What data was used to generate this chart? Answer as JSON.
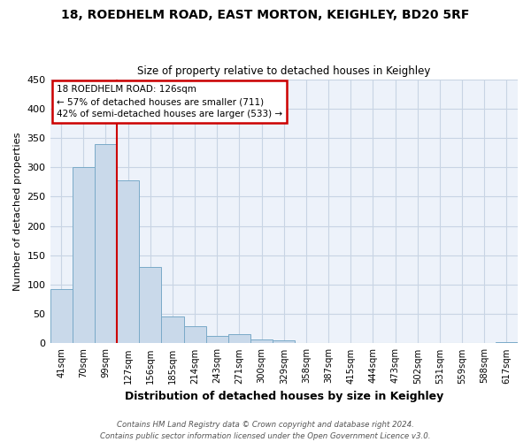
{
  "title1": "18, ROEDHELM ROAD, EAST MORTON, KEIGHLEY, BD20 5RF",
  "title2": "Size of property relative to detached houses in Keighley",
  "xlabel": "Distribution of detached houses by size in Keighley",
  "ylabel": "Number of detached properties",
  "bar_labels": [
    "41sqm",
    "70sqm",
    "99sqm",
    "127sqm",
    "156sqm",
    "185sqm",
    "214sqm",
    "243sqm",
    "271sqm",
    "300sqm",
    "329sqm",
    "358sqm",
    "387sqm",
    "415sqm",
    "444sqm",
    "473sqm",
    "502sqm",
    "531sqm",
    "559sqm",
    "588sqm",
    "617sqm"
  ],
  "bar_values": [
    92,
    301,
    340,
    278,
    130,
    46,
    30,
    13,
    15,
    7,
    5,
    0,
    0,
    0,
    0,
    0,
    0,
    0,
    0,
    0,
    2
  ],
  "bar_color": "#c9d9ea",
  "bar_edgecolor": "#7aaac8",
  "vline_x_idx": 3,
  "vline_color": "#cc0000",
  "ann_line1": "18 ROEDHELM ROAD: 126sqm",
  "ann_line2": "← 57% of detached houses are smaller (711)",
  "ann_line3": "42% of semi-detached houses are larger (533) →",
  "annotation_box_edgecolor": "#cc0000",
  "annotation_box_facecolor": "#ffffff",
  "ylim": [
    0,
    450
  ],
  "yticks": [
    0,
    50,
    100,
    150,
    200,
    250,
    300,
    350,
    400,
    450
  ],
  "grid_color": "#c8d4e4",
  "bg_color": "#edf2fa",
  "footer_line1": "Contains HM Land Registry data © Crown copyright and database right 2024.",
  "footer_line2": "Contains public sector information licensed under the Open Government Licence v3.0."
}
